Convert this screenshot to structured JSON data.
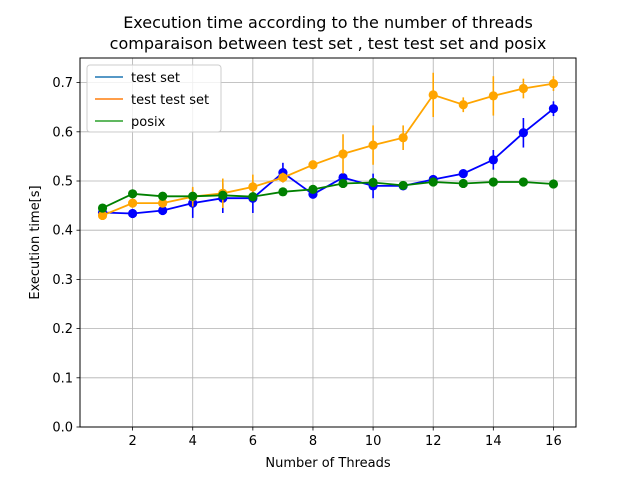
{
  "chart_data": {
    "type": "line",
    "title": "Execution time according to the number of threads\ncomparaison between test set , test test set and posix",
    "xlabel": "Number of Threads",
    "ylabel": "Execution time[s]",
    "xlim": [
      0.25,
      16.75
    ],
    "ylim": [
      0.0,
      0.75
    ],
    "xticks": [
      2,
      4,
      6,
      8,
      10,
      12,
      14,
      16
    ],
    "yticks": [
      0.0,
      0.1,
      0.2,
      0.3,
      0.4,
      0.5,
      0.6,
      0.7
    ],
    "grid": true,
    "legend_placement": "top-left",
    "x": [
      1,
      2,
      3,
      4,
      5,
      6,
      7,
      8,
      9,
      10,
      11,
      12,
      13,
      14,
      15,
      16
    ],
    "series": [
      {
        "name": "test set",
        "legend_color": "#1f77b4",
        "color": "#0000ff",
        "values": [
          0.436,
          0.434,
          0.44,
          0.455,
          0.465,
          0.465,
          0.517,
          0.473,
          0.507,
          0.49,
          0.49,
          0.503,
          0.515,
          0.543,
          0.598,
          0.647
        ],
        "errors": [
          0.005,
          0.005,
          0.005,
          0.03,
          0.03,
          0.03,
          0.02,
          0.005,
          0.005,
          0.025,
          0.005,
          0.005,
          0.005,
          0.02,
          0.03,
          0.015
        ]
      },
      {
        "name": "test test set",
        "legend_color": "#ff7f0e",
        "color": "#ffa500",
        "values": [
          0.43,
          0.455,
          0.455,
          0.468,
          0.475,
          0.488,
          0.507,
          0.533,
          0.555,
          0.573,
          0.588,
          0.675,
          0.655,
          0.673,
          0.688,
          0.698
        ],
        "errors": [
          0.005,
          0.005,
          0.005,
          0.02,
          0.03,
          0.025,
          0.01,
          0.005,
          0.04,
          0.04,
          0.025,
          0.045,
          0.015,
          0.04,
          0.02,
          0.015
        ]
      },
      {
        "name": "posix",
        "legend_color": "#2ca02c",
        "color": "#008000",
        "values": [
          0.445,
          0.474,
          0.469,
          0.469,
          0.471,
          0.468,
          0.478,
          0.483,
          0.495,
          0.497,
          0.491,
          0.498,
          0.495,
          0.498,
          0.498,
          0.494
        ],
        "errors": [
          0.008,
          0.004,
          0.003,
          0.003,
          0.003,
          0.003,
          0.003,
          0.003,
          0.003,
          0.003,
          0.003,
          0.003,
          0.003,
          0.003,
          0.003,
          0.003
        ]
      }
    ]
  }
}
